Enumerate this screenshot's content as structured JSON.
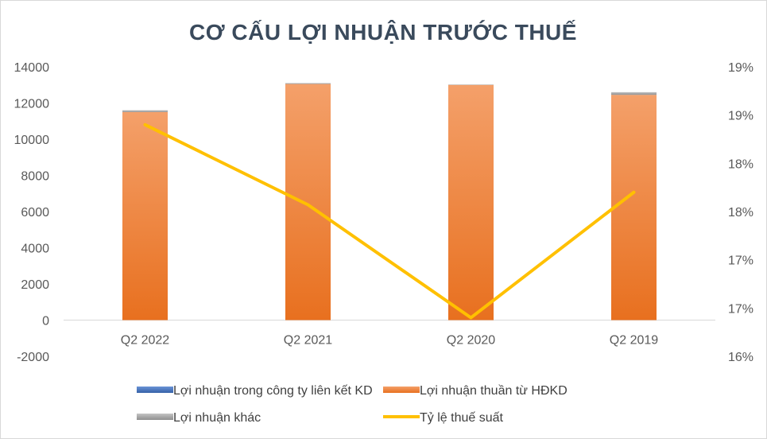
{
  "chart_data": {
    "type": "bar",
    "title": "CƠ CẤU LỢI NHUẬN TRƯỚC THUẾ",
    "categories": [
      "Q2 2022",
      "Q2 2021",
      "Q2 2020",
      "Q2 2019"
    ],
    "series": [
      {
        "name": "Lợi nhuận trong công ty liên kết KD",
        "type": "bar",
        "axis": "left",
        "color": "#4472c4",
        "values": [
          0,
          0,
          0,
          0
        ]
      },
      {
        "name": "Lợi nhuận thuần từ HĐKD",
        "type": "bar",
        "axis": "left",
        "color": "#ed7d31",
        "values": [
          11500,
          13050,
          13000,
          12450
        ]
      },
      {
        "name": "Lợi nhuận khác",
        "type": "bar",
        "axis": "left",
        "color": "#a5a5a5",
        "values": [
          100,
          50,
          20,
          150
        ]
      },
      {
        "name": "Tỷ lệ thuế suất",
        "type": "line",
        "axis": "right",
        "color": "#ffc000",
        "values": [
          18.9,
          18.07,
          16.9,
          18.2
        ]
      }
    ],
    "left_axis": {
      "min": -2000,
      "max": 14000,
      "step": 2000,
      "ticks": [
        "-2000",
        "0",
        "2000",
        "4000",
        "6000",
        "8000",
        "10000",
        "12000",
        "14000"
      ]
    },
    "right_axis": {
      "min": 16.5,
      "max": 19.5,
      "ticks": [
        "16%",
        "17%",
        "17%",
        "18%",
        "18%",
        "19%",
        "19%"
      ]
    },
    "legend_position": "bottom",
    "grid": false
  }
}
